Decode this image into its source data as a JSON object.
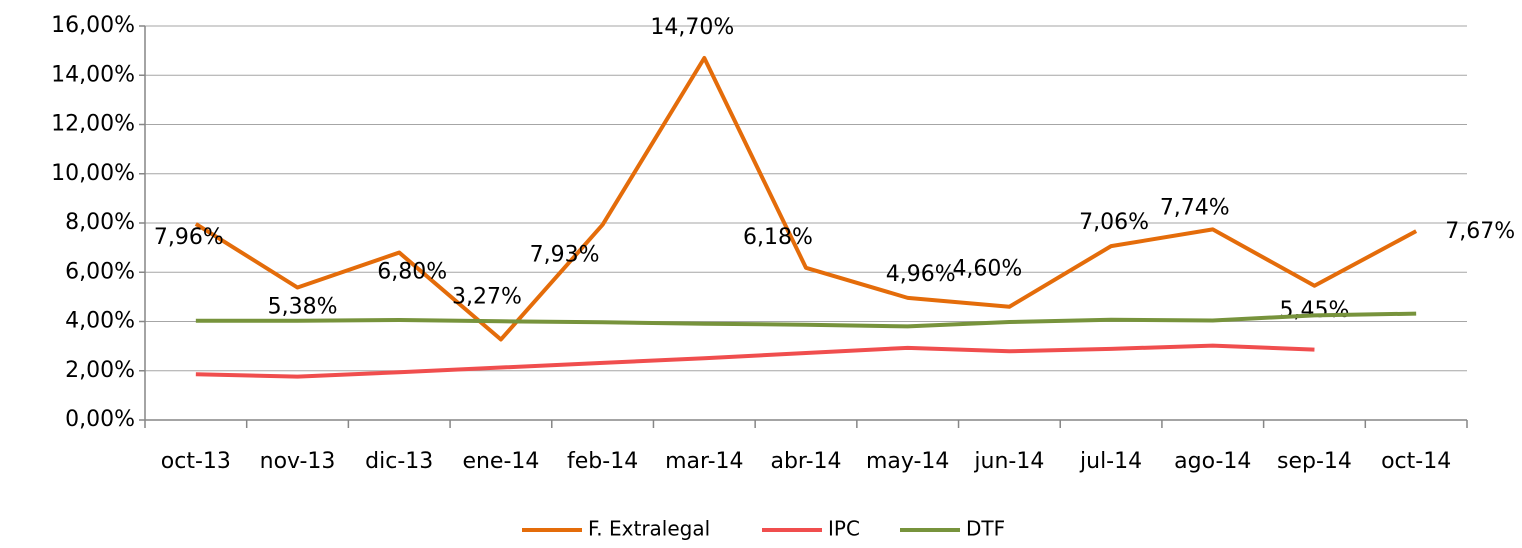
{
  "chart_data": {
    "type": "line",
    "categories": [
      "oct-13",
      "nov-13",
      "dic-13",
      "ene-14",
      "feb-14",
      "mar-14",
      "abr-14",
      "may-14",
      "jun-14",
      "jul-14",
      "ago-14",
      "sep-14",
      "oct-14"
    ],
    "series": [
      {
        "name": "F. Extralegal",
        "color": "#e46c0a",
        "values": [
          7.96,
          5.38,
          6.8,
          3.27,
          7.93,
          14.7,
          6.18,
          4.96,
          4.6,
          7.06,
          7.74,
          5.45,
          7.67
        ],
        "value_labels": [
          "7,96%",
          "5,38%",
          "6,80%",
          "3,27%",
          "7,93%",
          "14,70%",
          "6,18%",
          "4,96%",
          "4,60%",
          "7,06%",
          "7,74%",
          "5,45%",
          "7,67%"
        ]
      },
      {
        "name": "IPC",
        "color": "#f04e4e",
        "values": [
          1.86,
          1.76,
          1.94,
          2.13,
          2.32,
          2.51,
          2.72,
          2.93,
          2.79,
          2.89,
          3.02,
          2.86,
          null
        ]
      },
      {
        "name": "DTF",
        "color": "#77933c",
        "values": [
          4.03,
          4.03,
          4.06,
          4.01,
          3.97,
          3.91,
          3.87,
          3.8,
          3.98,
          4.07,
          4.04,
          4.25,
          4.32
        ]
      }
    ],
    "ylim": [
      0,
      16
    ],
    "yticks": [
      {
        "value": 0,
        "label": "0,00%"
      },
      {
        "value": 2,
        "label": "2,00%"
      },
      {
        "value": 4,
        "label": "4,00%"
      },
      {
        "value": 6,
        "label": "6,00%"
      },
      {
        "value": 8,
        "label": "8,00%"
      },
      {
        "value": 10,
        "label": "10,00%"
      },
      {
        "value": 12,
        "label": "12,00%"
      },
      {
        "value": 14,
        "label": "14,00%"
      },
      {
        "value": 16,
        "label": "16,00%"
      }
    ],
    "grid": true,
    "legend": "bottom"
  }
}
